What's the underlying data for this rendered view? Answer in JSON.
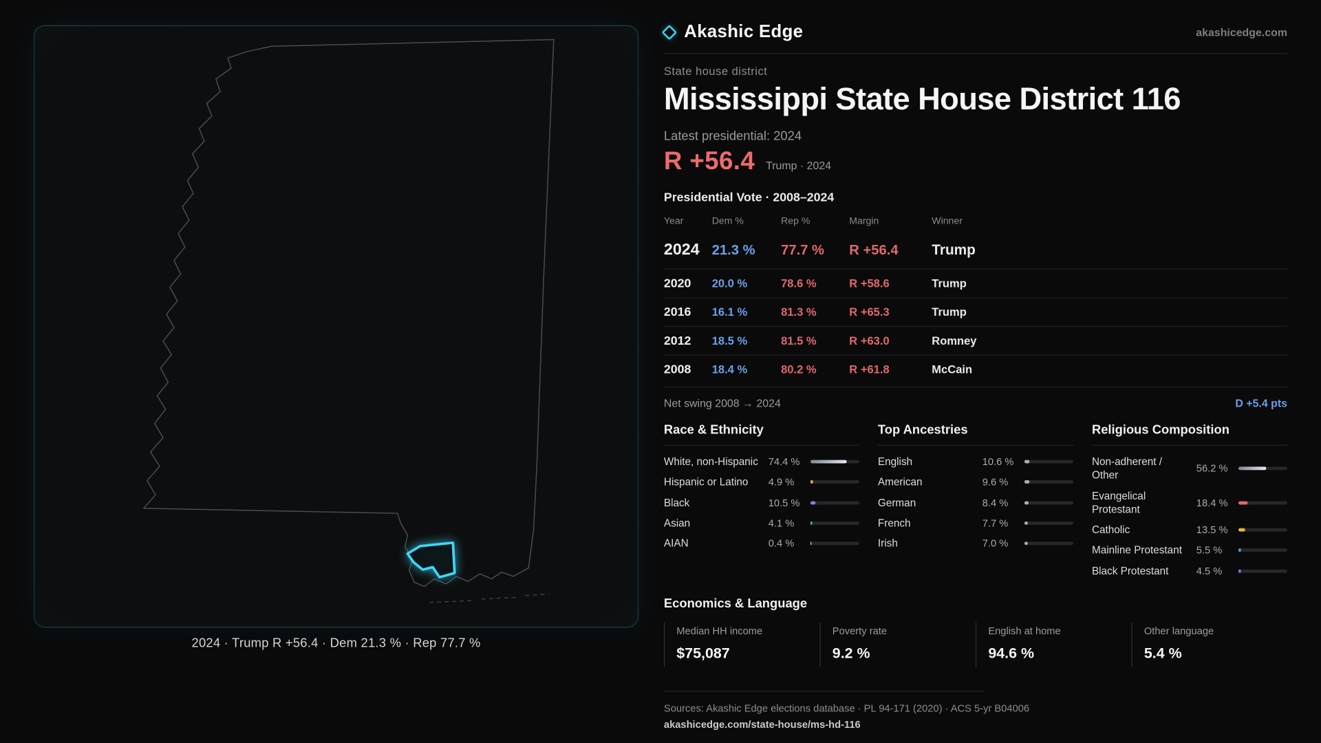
{
  "brand": {
    "name": "Akashic Edge",
    "domain": "akashicedge.com"
  },
  "map": {
    "caption": "2024 · Trump R +56.4 · Dem 21.3 % · Rep 77.7 %"
  },
  "page": {
    "eyebrow": "State house district",
    "title": "Mississippi State House District 116",
    "latest_label": "Latest presidential: 2024",
    "headline_margin": "R +56.4",
    "headline_context": "Trump · 2024",
    "table_title": "Presidential Vote · 2008–2024"
  },
  "vote_table": {
    "headers": [
      "Year",
      "Dem %",
      "Rep %",
      "Margin",
      "Winner"
    ],
    "rows": [
      {
        "year": "2024",
        "dem": "21.3 %",
        "rep": "77.7 %",
        "margin": "R +56.4",
        "winner": "Trump"
      },
      {
        "year": "2020",
        "dem": "20.0 %",
        "rep": "78.6 %",
        "margin": "R +58.6",
        "winner": "Trump"
      },
      {
        "year": "2016",
        "dem": "16.1 %",
        "rep": "81.3 %",
        "margin": "R +65.3",
        "winner": "Trump"
      },
      {
        "year": "2012",
        "dem": "18.5 %",
        "rep": "81.5 %",
        "margin": "R +63.0",
        "winner": "Romney"
      },
      {
        "year": "2008",
        "dem": "18.4 %",
        "rep": "80.2 %",
        "margin": "R +61.8",
        "winner": "McCain"
      }
    ]
  },
  "net_swing": {
    "label": "Net swing 2008 → 2024",
    "value": "D +5.4 pts"
  },
  "demographics": [
    {
      "title": "Race & Ethnicity",
      "rows": [
        {
          "label": "White, non-Hispanic",
          "value": "74.4 %",
          "pct": 74.4,
          "color": "linear-gradient(90deg,#7f8694,#e6e8ee)"
        },
        {
          "label": "Hispanic or Latino",
          "value": "4.9 %",
          "pct": 4.9,
          "color": "#e3b341"
        },
        {
          "label": "Black",
          "value": "10.5 %",
          "pct": 10.5,
          "color": "#8d7bf2"
        },
        {
          "label": "Asian",
          "value": "4.1 %",
          "pct": 4.1,
          "color": "#3ecf9a"
        },
        {
          "label": "AIAN",
          "value": "0.4 %",
          "pct": 0.4,
          "color": "#cfd2d8"
        }
      ]
    },
    {
      "title": "Top Ancestries",
      "rows": [
        {
          "label": "English",
          "value": "10.6 %",
          "pct": 10.6,
          "color": "#aab0ba"
        },
        {
          "label": "American",
          "value": "9.6 %",
          "pct": 9.6,
          "color": "#aab0ba"
        },
        {
          "label": "German",
          "value": "8.4 %",
          "pct": 8.4,
          "color": "#aab0ba"
        },
        {
          "label": "French",
          "value": "7.7 %",
          "pct": 7.7,
          "color": "#aab0ba"
        },
        {
          "label": "Irish",
          "value": "7.0 %",
          "pct": 7.0,
          "color": "#aab0ba"
        }
      ]
    },
    {
      "title": "Religious Composition",
      "rows": [
        {
          "label": "Non-adherent / Other",
          "value": "56.2 %",
          "pct": 56.2,
          "color": "linear-gradient(90deg,#7f8694,#e6e8ee)"
        },
        {
          "label": "Evangelical Protestant",
          "value": "18.4 %",
          "pct": 18.4,
          "color": "#e0696b"
        },
        {
          "label": "Catholic",
          "value": "13.5 %",
          "pct": 13.5,
          "color": "#e3b341"
        },
        {
          "label": "Mainline Protestant",
          "value": "5.5 %",
          "pct": 5.5,
          "color": "#5f8fe8"
        },
        {
          "label": "Black Protestant",
          "value": "4.5 %",
          "pct": 4.5,
          "color": "#7f74ee"
        }
      ]
    }
  ],
  "economics": {
    "title": "Economics & Language",
    "stats": [
      {
        "label": "Median HH income",
        "value": "$75,087"
      },
      {
        "label": "Poverty rate",
        "value": "9.2 %"
      },
      {
        "label": "English at home",
        "value": "94.6 %"
      },
      {
        "label": "Other language",
        "value": "5.4 %"
      }
    ]
  },
  "footer": {
    "sources": "Sources: Akashic Edge elections database · PL 94-171 (2020) · ACS 5-yr B04006",
    "permalink": "akashicedge.com/state-house/ms-hd-116"
  },
  "colors": {
    "accent": "#3fd6f5",
    "dem": "#6aa2e8",
    "rep": "#e0696b"
  }
}
